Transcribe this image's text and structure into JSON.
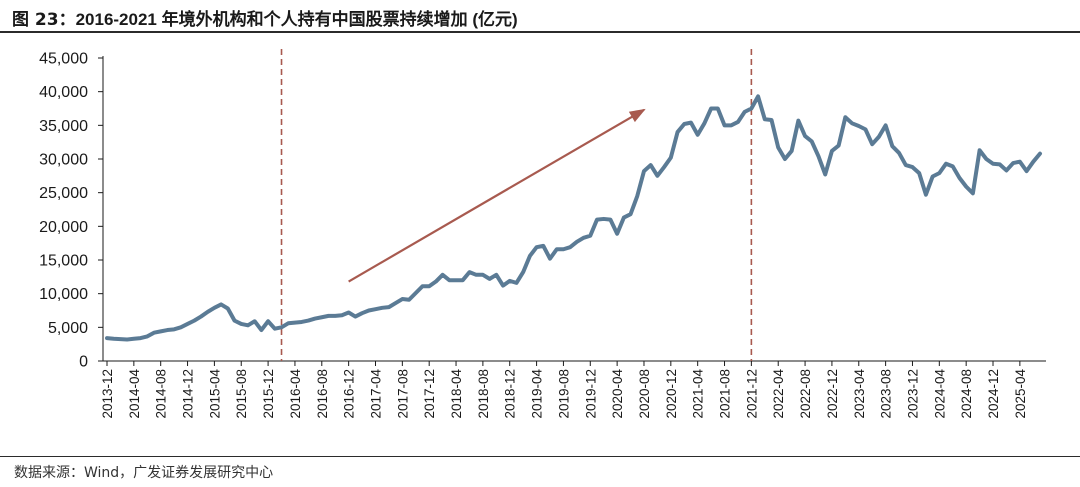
{
  "header": {
    "title_prefix": "图 23：",
    "title_main": "2016-2021 年境外机构和个人持有中国股票持续增加 (亿元)"
  },
  "footer": {
    "source": "数据来源：Wind，广发证券发展研究中心"
  },
  "colors": {
    "line": "#5b7b95",
    "marker": "#a85a4f",
    "arrow": "#a85a4f",
    "axis": "#1a1a1a"
  },
  "chart_data": {
    "type": "line",
    "title": "2016-2021 年境外机构和个人持有中国股票持续增加 (亿元)",
    "xlabel": "",
    "ylabel": "",
    "ylim": [
      0,
      45000
    ],
    "yticks": [
      0,
      5000,
      10000,
      15000,
      20000,
      25000,
      30000,
      35000,
      40000,
      45000
    ],
    "ytick_labels": [
      "0",
      "5,000",
      "10,000",
      "15,000",
      "20,000",
      "25,000",
      "30,000",
      "35,000",
      "40,000",
      "45,000"
    ],
    "x_start": "2013-12",
    "x_tick_labels": [
      "2013-12",
      "2014-04",
      "2014-08",
      "2014-12",
      "2015-04",
      "2015-08",
      "2015-12",
      "2016-04",
      "2016-08",
      "2016-12",
      "2017-04",
      "2017-08",
      "2017-12",
      "2018-04",
      "2018-08",
      "2018-12",
      "2019-04",
      "2019-08",
      "2019-12",
      "2020-04",
      "2020-08",
      "2020-12",
      "2021-04",
      "2021-08",
      "2021-12",
      "2022-04",
      "2022-08",
      "2022-12",
      "2023-04",
      "2023-08",
      "2023-12",
      "2024-04",
      "2024-08",
      "2024-12",
      "2025-04"
    ],
    "grid": false,
    "legend": "none",
    "vertical_markers": [
      "2016-02",
      "2021-12"
    ],
    "trend_arrow": {
      "from": [
        "2016-12",
        11800
      ],
      "to": [
        "2020-08",
        37300
      ]
    },
    "series": [
      {
        "name": "境外机构和个人持有中国股票",
        "values": [
          3400,
          3300,
          3250,
          3200,
          3300,
          3400,
          3650,
          4200,
          4400,
          4600,
          4700,
          5000,
          5500,
          6000,
          6600,
          7300,
          7900,
          8400,
          7800,
          6000,
          5500,
          5300,
          5900,
          4600,
          5900,
          4800,
          5000,
          5600,
          5700,
          5800,
          6000,
          6300,
          6500,
          6700,
          6700,
          6800,
          7200,
          6600,
          7100,
          7500,
          7700,
          7900,
          8000,
          8600,
          9200,
          9100,
          10100,
          11100,
          11100,
          11800,
          12800,
          12000,
          12000,
          12000,
          13200,
          12800,
          12800,
          12200,
          12800,
          11200,
          11900,
          11600,
          13200,
          15600,
          16900,
          17100,
          15200,
          16600,
          16600,
          16900,
          17700,
          18300,
          18600,
          21000,
          21100,
          21000,
          18900,
          21300,
          21800,
          24500,
          28200,
          29100,
          27500,
          28800,
          30200,
          34000,
          35200,
          35400,
          33600,
          35300,
          37500,
          37500,
          35000,
          35000,
          35500,
          37000,
          37500,
          39300,
          35900,
          35800,
          31700,
          30000,
          31200,
          35700,
          33400,
          32600,
          30400,
          27700,
          31200,
          32000,
          36200,
          35300,
          34900,
          34400,
          32200,
          33300,
          35000,
          31900,
          30900,
          29100,
          28800,
          27900,
          24700,
          27400,
          27900,
          29300,
          28900,
          27200,
          25900,
          24900,
          31300,
          30000,
          29300,
          29200,
          28300,
          29400,
          29600,
          28200,
          29600,
          30800
        ]
      }
    ]
  }
}
